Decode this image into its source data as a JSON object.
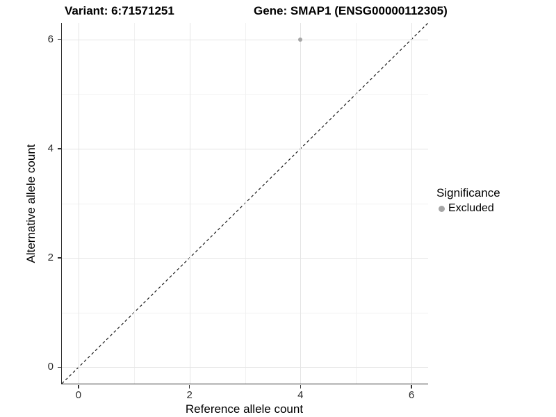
{
  "chart_data": {
    "type": "scatter",
    "title_left": "Variant: 6:71571251",
    "title_right": "Gene: SMAP1 (ENSG00000112305)",
    "xlabel": "Reference allele count",
    "ylabel": "Alternative allele count",
    "xlim": [
      -0.3,
      6.3
    ],
    "ylim": [
      -0.3,
      6.3
    ],
    "x_ticks": [
      0,
      2,
      4,
      6
    ],
    "y_ticks": [
      0,
      2,
      4,
      6
    ],
    "x_minor_ticks": [
      1,
      3,
      5
    ],
    "y_minor_ticks": [
      1,
      3,
      5
    ],
    "grid": true,
    "identity_line": {
      "style": "dashed",
      "x1": -0.3,
      "y1": -0.3,
      "x2": 6.3,
      "y2": 6.3,
      "color": "#1a1a1a"
    },
    "series": [
      {
        "name": "Excluded",
        "color": "#a6a6a6",
        "points": [
          {
            "x": 4,
            "y": 6
          }
        ]
      }
    ],
    "legend": {
      "title": "Significance",
      "position": "right",
      "entries": [
        {
          "label": "Excluded",
          "color": "#a6a6a6"
        }
      ]
    }
  },
  "colors": {
    "major_grid": "#e4e4e4",
    "minor_grid": "#f1f1f1",
    "axis_line": "#333333",
    "background": "#ffffff"
  }
}
